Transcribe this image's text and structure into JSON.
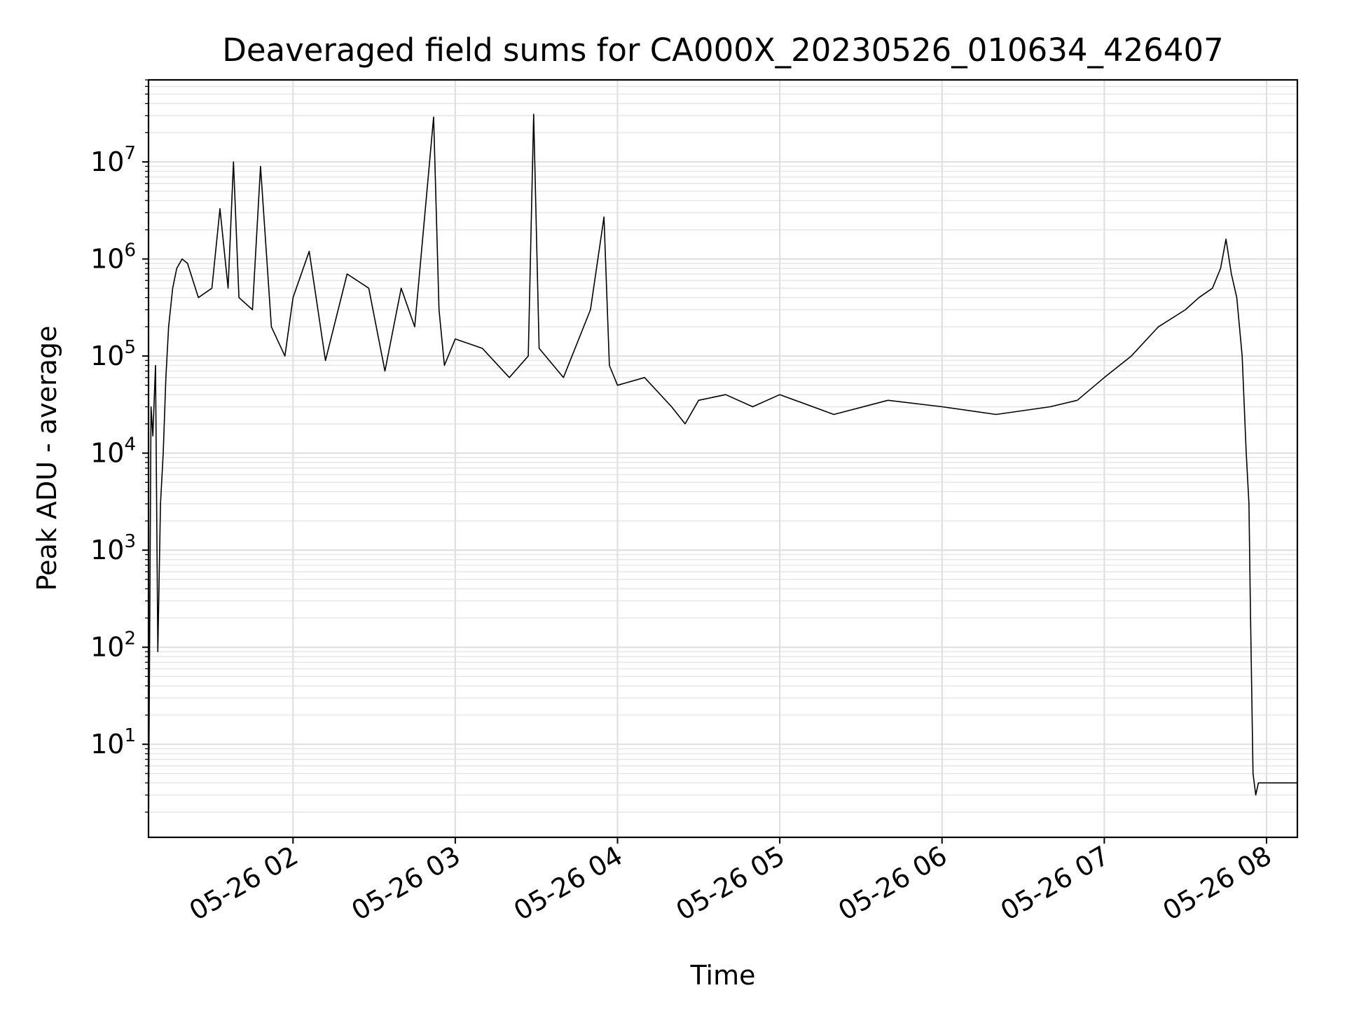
{
  "chart_data": {
    "type": "line",
    "title": "Deaveraged field sums for CA000X_20230526_010634_426407",
    "xlabel": "Time",
    "ylabel": "Peak ADU - average",
    "yscale": "log",
    "ylim": [
      1.1,
      70000000
    ],
    "xlim": [
      "05-26 01:06:34",
      "05-26 08:11:24"
    ],
    "grid": true,
    "grid_minor_y": true,
    "line_color": "#000000",
    "x_ticks": [
      {
        "t": "05-26 02:00",
        "label": "05-26 02"
      },
      {
        "t": "05-26 03:00",
        "label": "05-26 03"
      },
      {
        "t": "05-26 04:00",
        "label": "05-26 04"
      },
      {
        "t": "05-26 05:00",
        "label": "05-26 05"
      },
      {
        "t": "05-26 06:00",
        "label": "05-26 06"
      },
      {
        "t": "05-26 07:00",
        "label": "05-26 07"
      },
      {
        "t": "05-26 08:00",
        "label": "05-26 08"
      }
    ],
    "y_ticks": [
      {
        "value": 10,
        "base": "10",
        "exp": "1"
      },
      {
        "value": 100,
        "base": "10",
        "exp": "2"
      },
      {
        "value": 1000,
        "base": "10",
        "exp": "3"
      },
      {
        "value": 10000,
        "base": "10",
        "exp": "4"
      },
      {
        "value": 100000,
        "base": "10",
        "exp": "5"
      },
      {
        "value": 1000000,
        "base": "10",
        "exp": "6"
      },
      {
        "value": 10000000,
        "base": "10",
        "exp": "7"
      }
    ],
    "series": [
      {
        "x": [
          "05-26 01:06:34",
          "05-26 01:07:30",
          "05-26 01:08:10",
          "05-26 01:08:40",
          "05-26 01:09:10",
          "05-26 01:10:00",
          "05-26 01:11:00",
          "05-26 01:12:00",
          "05-26 01:13:00",
          "05-26 01:14:00",
          "05-26 01:15:30",
          "05-26 01:17:00",
          "05-26 01:19:00",
          "05-26 01:21:00",
          "05-26 01:23:00",
          "05-26 01:25:00",
          "05-26 01:30:00",
          "05-26 01:33:00",
          "05-26 01:36:00",
          "05-26 01:38:00",
          "05-26 01:40:00",
          "05-26 01:45:00",
          "05-26 01:48:00",
          "05-26 01:52:00",
          "05-26 01:57:00",
          "05-26 02:00:00",
          "05-26 02:06:00",
          "05-26 02:12:00",
          "05-26 02:20:00",
          "05-26 02:28:00",
          "05-26 02:34:00",
          "05-26 02:40:00",
          "05-26 02:45:00",
          "05-26 02:52:00",
          "05-26 02:54:00",
          "05-26 02:56:00",
          "05-26 03:00:00",
          "05-26 03:10:00",
          "05-26 03:20:00",
          "05-26 03:27:00",
          "05-26 03:29:00",
          "05-26 03:31:00",
          "05-26 03:40:00",
          "05-26 03:50:00",
          "05-26 03:55:00",
          "05-26 03:57:00",
          "05-26 04:00:00",
          "05-26 04:10:00",
          "05-26 04:20:00",
          "05-26 04:25:00",
          "05-26 04:30:00",
          "05-26 04:40:00",
          "05-26 04:50:00",
          "05-26 05:00:00",
          "05-26 05:20:00",
          "05-26 05:40:00",
          "05-26 06:00:00",
          "05-26 06:20:00",
          "05-26 06:40:00",
          "05-26 06:50:00",
          "05-26 07:00:00",
          "05-26 07:10:00",
          "05-26 07:20:00",
          "05-26 07:30:00",
          "05-26 07:35:00",
          "05-26 07:40:00",
          "05-26 07:43:00",
          "05-26 07:45:00",
          "05-26 07:47:00",
          "05-26 07:49:00",
          "05-26 07:51:00",
          "05-26 07:52:30",
          "05-26 07:53:30",
          "05-26 07:54:00",
          "05-26 07:55:00",
          "05-26 07:56:00",
          "05-26 07:57:00",
          "05-26 08:11:24"
        ],
        "y": [
          1.2,
          30000,
          15000,
          35000,
          80000,
          90,
          3000,
          10000,
          60000,
          200000,
          500000,
          800000,
          1000000,
          900000,
          600000,
          400000,
          500000,
          3300000,
          500000,
          10000000,
          400000,
          300000,
          9000000,
          200000,
          100000,
          400000,
          1200000,
          90000,
          700000,
          500000,
          70000,
          500000,
          200000,
          29000000,
          300000,
          80000,
          150000,
          120000,
          60000,
          100000,
          31000000,
          120000,
          60000,
          300000,
          2700000,
          80000,
          50000,
          60000,
          30000,
          20000,
          35000,
          40000,
          30000,
          40000,
          25000,
          35000,
          30000,
          25000,
          30000,
          35000,
          60000,
          100000,
          200000,
          300000,
          400000,
          500000,
          800000,
          1600000,
          700000,
          400000,
          100000,
          10000,
          3000,
          300,
          5,
          3,
          4,
          4
        ]
      }
    ]
  }
}
